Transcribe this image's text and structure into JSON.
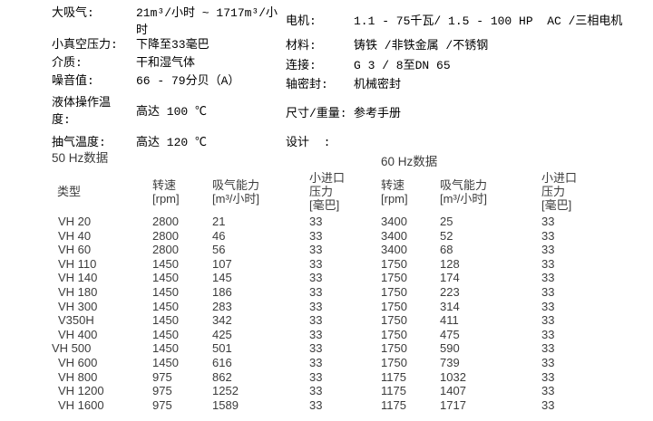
{
  "specs": {
    "left": [
      {
        "label": "大吸气:",
        "value": "21m³/小时 ~ 1717m³/小\n时"
      },
      {
        "label": "小真空压力:",
        "value": "下降至33毫巴"
      },
      {
        "label": "介质:",
        "value": "干和湿气体"
      },
      {
        "label": "噪音值:",
        "value": "66 - 79分贝（A）"
      },
      {
        "label": "液体操作温\n度:",
        "value": "高达 100 ℃"
      },
      {
        "label": "抽气温度:",
        "value": "高达 120 ℃"
      }
    ],
    "right": [
      {
        "label": "电机:",
        "value": "1.1 - 75千瓦/ 1.5 - 100 HP  AC /三相电机"
      },
      {
        "label": "材料:",
        "value": "铸铁 /非铁金属 /不锈钢"
      },
      {
        "label": "连接:",
        "value": "G 3 / 8至DN 65"
      },
      {
        "label": "轴密封:",
        "value": "机械密封"
      },
      {
        "label": "尺寸/重量:",
        "value": "参考手册"
      },
      {
        "label": "设计  :",
        "value": ""
      }
    ]
  },
  "sections": {
    "hz50_title": "50 Hz数据",
    "hz60_title": "60 Hz数据"
  },
  "table": {
    "headers": {
      "type": "类型",
      "rpm": "转速\n[rpm]",
      "capacity": "吸气能力\n[m³/小时]",
      "pressure": "小进口\n压力\n[毫巴]"
    },
    "rows": [
      {
        "type": "VH 20",
        "rpm50": "2800",
        "cap50": "21",
        "prs50": "33",
        "rpm60": "3400",
        "cap60": "25",
        "prs60": "33"
      },
      {
        "type": "VH 40",
        "rpm50": "2800",
        "cap50": "46",
        "prs50": "33",
        "rpm60": "3400",
        "cap60": "52",
        "prs60": "33"
      },
      {
        "type": "VH 60",
        "rpm50": "2800",
        "cap50": "56",
        "prs50": "33",
        "rpm60": "3400",
        "cap60": "68",
        "prs60": "33"
      },
      {
        "type": "VH 110",
        "rpm50": "1450",
        "cap50": "107",
        "prs50": "33",
        "rpm60": "1750",
        "cap60": "128",
        "prs60": "33"
      },
      {
        "type": "VH 140",
        "rpm50": "1450",
        "cap50": "145",
        "prs50": "33",
        "rpm60": "1750",
        "cap60": "174",
        "prs60": "33"
      },
      {
        "type": "VH 180",
        "rpm50": "1450",
        "cap50": "186",
        "prs50": "33",
        "rpm60": "1750",
        "cap60": "223",
        "prs60": "33"
      },
      {
        "type": "VH 300",
        "rpm50": "1450",
        "cap50": "283",
        "prs50": "33",
        "rpm60": "1750",
        "cap60": "314",
        "prs60": "33"
      },
      {
        "type": "V350H",
        "rpm50": "1450",
        "cap50": "342",
        "prs50": "33",
        "rpm60": "1750",
        "cap60": "411",
        "prs60": "33"
      },
      {
        "type": "VH 400",
        "rpm50": "1450",
        "cap50": "425",
        "prs50": "33",
        "rpm60": "1750",
        "cap60": "475",
        "prs60": "33"
      },
      {
        "type": "VH 500",
        "outdent": true,
        "rpm50": "1450",
        "cap50": "501",
        "prs50": "33",
        "rpm60": "1750",
        "cap60": "590",
        "prs60": "33"
      },
      {
        "type": "VH 600",
        "rpm50": "1450",
        "cap50": "616",
        "prs50": "33",
        "rpm60": "1750",
        "cap60": "739",
        "prs60": "33"
      },
      {
        "type": "VH 800",
        "rpm50": "975",
        "cap50": "862",
        "prs50": "33",
        "rpm60": "1175",
        "cap60": "1032",
        "prs60": "33"
      },
      {
        "type": "VH 1200",
        "rpm50": "975",
        "cap50": "1252",
        "prs50": "33",
        "rpm60": "1175",
        "cap60": "1407",
        "prs60": "33"
      },
      {
        "type": "VH 1600",
        "rpm50": "975",
        "cap50": "1589",
        "prs50": "33",
        "rpm60": "1175",
        "cap60": "1717",
        "prs60": "33"
      }
    ]
  },
  "colors": {
    "spec_text": "#000000",
    "table_text": "#3c3c3c",
    "background": "#ffffff"
  }
}
